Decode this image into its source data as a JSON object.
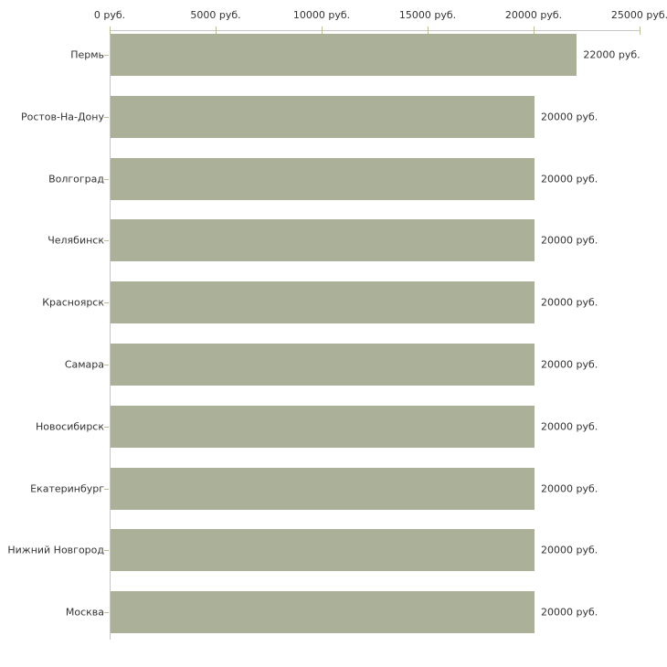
{
  "chart_data": {
    "type": "bar",
    "orientation": "horizontal",
    "title": "",
    "xlabel": "",
    "ylabel": "",
    "grid": false,
    "legend": null,
    "axis_position": "top",
    "categories": [
      "Пермь",
      "Ростов-На-Дону",
      "Волгоград",
      "Челябинск",
      "Красноярск",
      "Самара",
      "Новосибирск",
      "Екатеринбург",
      "Нижний Новгород",
      "Москва"
    ],
    "values": [
      22000,
      20000,
      20000,
      20000,
      20000,
      20000,
      20000,
      20000,
      20000,
      20000
    ],
    "value_labels": [
      "22000 руб.",
      "20000 руб.",
      "20000 руб.",
      "20000 руб.",
      "20000 руб.",
      "20000 руб.",
      "20000 руб.",
      "20000 руб.",
      "20000 руб.",
      "20000 руб."
    ],
    "x_ticks": [
      0,
      5000,
      10000,
      15000,
      20000,
      25000
    ],
    "x_tick_labels": [
      "0 руб.",
      "5000 руб.",
      "10000 руб.",
      "15000 руб.",
      "20000 руб.",
      "25000 руб."
    ],
    "xlim": [
      0,
      25000
    ],
    "colors": {
      "bar": "#abb199",
      "axis_line": "#c6c6c6",
      "tick_mark": "#bdbd94",
      "text": "#333333",
      "background": "#ffffff"
    }
  }
}
